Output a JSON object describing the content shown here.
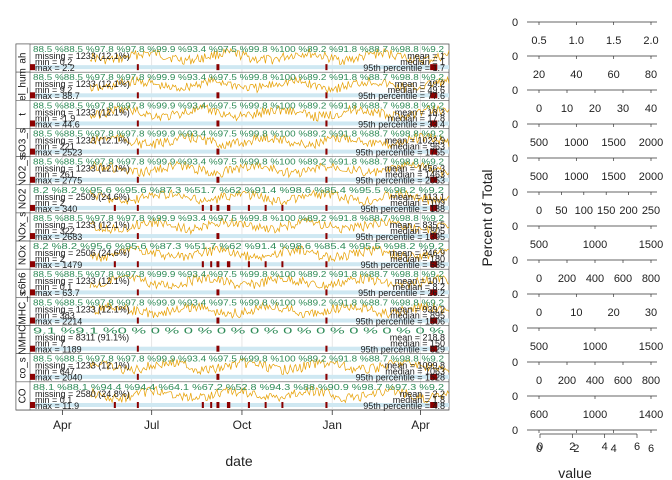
{
  "chart_data": {
    "type": "line",
    "xlabel": "date",
    "time_axis_ticks": [
      "Apr",
      "Jul",
      "Oct",
      "Jan",
      "Apr"
    ],
    "time_axis_tick_dates": [
      "2000-04-01",
      "2000-07-01",
      "2000-10-01",
      "2001-01-01",
      "2001-04-01"
    ],
    "date_range": [
      "2000-02-28",
      "2001-04-30"
    ],
    "series": [
      {
        "name": "ah",
        "pct_row": "88.5 %88.5 %97.8 %97.8 %99.9 %93.4 %97.5 %99.8 %100 %89.2 %91.8 %88.7 %98.8 %9.2",
        "missing": "missing = 1233 (12.1%)",
        "min": "min = 0.2",
        "max": "max = 2.2",
        "mean": "mean = 1",
        "median": "median = 1",
        "p95": "95th percentile = 1.7",
        "density_ticks": [
          "0.5",
          "1.0",
          "1.5",
          "2.0"
        ]
      },
      {
        "name": "rel_hum",
        "pct_row": "88.5 %88.5 %97.8 %97.8 %99.9 %93.4 %97.5 %99.8 %100 %89.2 %91.8 %88.7 %98.8 %9.2",
        "missing": "missing = 1233 (12.1%)",
        "min": "min = 9.2",
        "max": "max = 88.7",
        "mean": "mean = 49.2",
        "median": "median = 49.6",
        "p95": "95th percentile = 77.6",
        "density_ticks": [
          "20",
          "40",
          "60",
          "80"
        ]
      },
      {
        "name": "t",
        "pct_row": "88.5 %88.5 %97.8 %97.8 %99.9 %93.4 %97.5 %99.8 %100 %89.2 %91.8 %88.7 %98.8 %9.2",
        "missing": "missing = 1233 (12.1%)",
        "min": "min = -1.9",
        "max": "max = 44.6",
        "mean": "mean = 18.3",
        "median": "median = 17.8",
        "p95": "95th percentile = 33.4",
        "density_ticks": [
          "0",
          "10",
          "20",
          "30",
          "40"
        ]
      },
      {
        "name": "sO3_s",
        "pct_row": "88.5 %88.5 %97.8 %97.8 %99.9 %93.4 %97.5 %99.8 %100 %89.2 %91.8 %88.7 %98.8 %9.2",
        "missing": "missing = 1233 (12.1%)",
        "min": "min = 221",
        "max": "max = 2523",
        "mean": "mean = 1022.9",
        "median": "median = 963",
        "p95": "95th percentile = 1755",
        "density_ticks": [
          "500",
          "1000",
          "1500",
          "2000"
        ]
      },
      {
        "name": "NO2_s",
        "pct_row": "88.5 %88.5 %97.8 %97.8 %99.9 %93.4 %97.5 %99.8 %100 %89.2 %91.8 %88.7 %98.8 %9.2",
        "missing": "missing = 1233 (12.1%)",
        "min": "min = 261",
        "max": "max = 2775",
        "mean": "mean = 1456.3",
        "median": "median = 1463",
        "p95": "95th percentile = 2053",
        "density_ticks": [
          "500",
          "1000",
          "1500",
          "2000"
        ]
      },
      {
        "name": "NO2",
        "pct_row": "8.2 %8.2 %95.6 %95.6 %87.3 %51.7 %62 %91.4 %98.6 %85.4 %95.5 %98.2 %9.2",
        "missing": "missing = 2509 (24.6%)",
        "min": "min = 2",
        "max": "max = 340",
        "mean": "mean = 113.1",
        "median": "median = 109",
        "p95": "95th percentile = 188",
        "density_ticks": [
          "0",
          "50",
          "100",
          "150",
          "200",
          "250"
        ]
      },
      {
        "name": "NOx_s",
        "pct_row": "88.5 %88.5 %97.8 %97.8 %99.9 %93.4 %97.5 %99.8 %100 %89.2 %91.8 %88.7 %98.8 %9.2",
        "missing": "missing = 1233 (12.1%)",
        "min": "min = 322",
        "max": "max = 2683",
        "mean": "mean = 835.5",
        "median": "median = 805",
        "p95": "95th percentile = 1395",
        "density_ticks": [
          "500",
          "1000",
          "1500"
        ]
      },
      {
        "name": "NOx",
        "pct_row": "8.2 %8.2 %95.6 %95.6 %87.3 %51.7 %62 %91.4 %98.6 %85.4 %95.5 %98.2 %9.2",
        "missing": "missing = 2506 (24.6%)",
        "min": "min = 2",
        "max": "max = 1479",
        "mean": "mean = 246.9",
        "median": "median = 180",
        "p95": "95th percentile = 685",
        "density_ticks": [
          "0",
          "200",
          "400",
          "600",
          "800"
        ]
      },
      {
        "name": "c6h6",
        "pct_row": "88.5 %88.5 %97.8 %97.8 %99.9 %93.4 %97.5 %99.8 %100 %89.2 %91.8 %88.7 %98.8 %9.2",
        "missing": "missing = 1233 (12.1%)",
        "min": "min = 0.1",
        "max": "max = 63.7",
        "mean": "mean = 10.1",
        "median": "median = 8.2",
        "p95": "95th percentile = 26.2",
        "density_ticks": [
          "0",
          "10",
          "20",
          "30"
        ]
      },
      {
        "name": "NMHC_s",
        "pct_row": "88.5 %88.5 %97.8 %97.8 %99.9 %93.4 %97.5 %99.8 %100 %89.2 %91.8 %88.7 %98.8 %9.2",
        "missing": "missing = 1233 (12.1%)",
        "min": "min = 383",
        "max": "max = 2214",
        "mean": "mean = 939.2",
        "median": "median = 895",
        "p95": "95th percentile = 1506",
        "density_ticks": [
          "500",
          "1000",
          "1500"
        ]
      },
      {
        "name": "NMHC",
        "pct_row": "9.1 %9.1 %0 % 0 % 0 % 0 % 0 % 0 % 0 % 0 % 0 % 0 %",
        "missing": "missing = 8311 (91.1%)",
        "min": "min = 7",
        "max": "max = 1189",
        "mean": "mean = 218.8",
        "median": "median = 150",
        "p95": "95th percentile = 629",
        "density_ticks": [
          "0",
          "200",
          "400",
          "600",
          "800"
        ]
      },
      {
        "name": "co_s",
        "pct_row": "88.5 %88.5 %97.8 %97.8 %99.9 %93.4 %97.5 %99.8 %100 %89.2 %91.8 %88.7 %98.8 %9.2",
        "missing": "missing = 1233 (12.1%)",
        "min": "min = 647",
        "max": "max = 2040",
        "mean": "mean = 1099.8",
        "median": "median = 1063",
        "p95": "95th percentile = 1528",
        "density_ticks": [
          "600",
          "1000",
          "1400"
        ]
      },
      {
        "name": "CO",
        "pct_row": "88.1 %88.1 %94.4 %94.4 %64.1 %67.2 %52.8 %94.3 %88 %90.9 %98.7 %97.3 %9.2",
        "missing": "missing = 2580 (24.8%)",
        "min": "min = 0.1",
        "max": "max = 11.9",
        "mean": "mean = 2.2",
        "median": "median = 1.8",
        "p95": "95th percentile = 4.8",
        "density_ticks": [
          "0",
          "2",
          "4",
          "6"
        ]
      }
    ],
    "density_panel": {
      "ylabel": "Percent of Total",
      "xlabel": "value",
      "y_ticks": [
        "0",
        "0",
        "0",
        "0",
        "0",
        "0",
        "0",
        "0",
        "0",
        "0",
        "0",
        "0",
        "0"
      ],
      "shared_x_ticks": [
        "0",
        "2",
        "4",
        "6"
      ]
    },
    "colors": {
      "line": "#e69f00",
      "gap_bar": "#8b0000",
      "strip_bg": "#cfe8f2",
      "pct_text": "#2e8b57",
      "grid": "#e0e0e0"
    }
  }
}
